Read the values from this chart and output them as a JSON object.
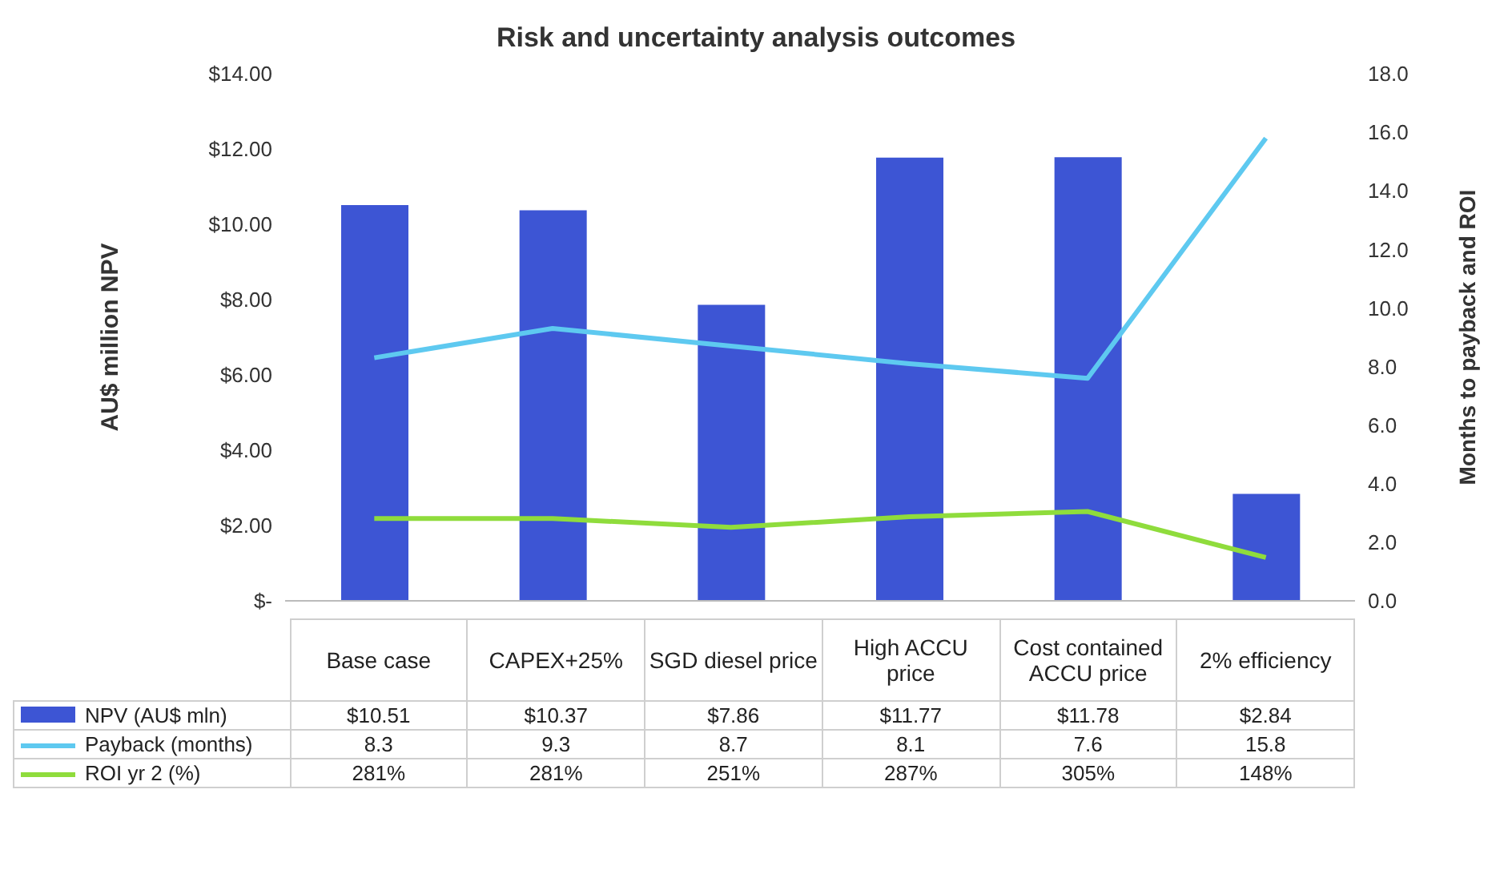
{
  "chart_data": {
    "type": "bar",
    "title": "Risk and uncertainty analysis outcomes",
    "ylabel": "AU$ million NPV",
    "y2label": "Months to payback and ROI",
    "categories": [
      "Base case",
      "CAPEX+25%",
      "SGD diesel price",
      "High ACCU price",
      "Cost contained ACCU price",
      "2% efficiency"
    ],
    "series": [
      {
        "name": "NPV (AU$ mln)",
        "color": "#3d55d4",
        "values": [
          10.51,
          10.37,
          7.86,
          11.77,
          11.78,
          2.84
        ],
        "value_labels": [
          "$10.51",
          "$10.37",
          "$7.86",
          "$11.77",
          "$11.78",
          "$2.84"
        ]
      },
      {
        "name": "Payback (months)",
        "type": "line",
        "axis": "y2",
        "color": "#5ec9f0",
        "values": [
          8.3,
          9.3,
          8.7,
          8.1,
          7.6,
          15.8
        ],
        "value_labels": [
          "8.3",
          "9.3",
          "8.7",
          "8.1",
          "7.6",
          "15.8"
        ]
      },
      {
        "name": "ROI yr 2 (%)",
        "type": "line",
        "axis": "y2",
        "color": "#8fdc3c",
        "values": [
          2.81,
          2.81,
          2.51,
          2.87,
          3.05,
          1.48
        ],
        "value_labels": [
          "281%",
          "281%",
          "251%",
          "287%",
          "305%",
          "148%"
        ]
      }
    ],
    "ylim": [
      0,
      14
    ],
    "yticks": [
      {
        "value": 0,
        "label": "$-"
      },
      {
        "value": 2,
        "label": "$2.00"
      },
      {
        "value": 4,
        "label": "$4.00"
      },
      {
        "value": 6,
        "label": "$6.00"
      },
      {
        "value": 8,
        "label": "$8.00"
      },
      {
        "value": 10,
        "label": "$10.00"
      },
      {
        "value": 12,
        "label": "$12.00"
      },
      {
        "value": 14,
        "label": "$14.00"
      }
    ],
    "y2lim": [
      0,
      18
    ],
    "y2ticks": [
      {
        "value": 0,
        "label": "0.0"
      },
      {
        "value": 2,
        "label": "2.0"
      },
      {
        "value": 4,
        "label": "4.0"
      },
      {
        "value": 6,
        "label": "6.0"
      },
      {
        "value": 8,
        "label": "8.0"
      },
      {
        "value": 10,
        "label": "10.0"
      },
      {
        "value": 12,
        "label": "12.0"
      },
      {
        "value": 14,
        "label": "14.0"
      },
      {
        "value": 16,
        "label": "16.0"
      },
      {
        "value": 18,
        "label": "18.0"
      }
    ],
    "grid": false,
    "legend": "bottom",
    "marker": "none",
    "line_style": "solid"
  }
}
